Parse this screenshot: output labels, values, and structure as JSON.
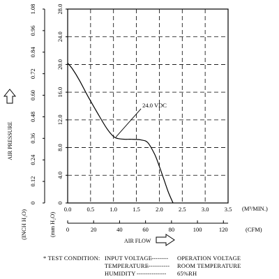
{
  "chart_data": {
    "type": "line",
    "series": [
      {
        "name": "24.0 VDC",
        "x": [
          0.0,
          0.1,
          0.25,
          0.45,
          0.65,
          0.85,
          1.0,
          1.1,
          1.25,
          1.4,
          1.6,
          1.75,
          1.9,
          2.0,
          2.1,
          2.2,
          2.3
        ],
        "y": [
          20.2,
          19.4,
          17.8,
          15.3,
          13.0,
          10.8,
          9.6,
          9.3,
          9.2,
          9.2,
          9.1,
          8.7,
          7.0,
          5.3,
          3.4,
          1.5,
          0.0
        ]
      }
    ],
    "annotation": "24.0 VDC",
    "xlim": [
      0,
      3.5
    ],
    "xticks": [
      "0.0",
      "0.5",
      "1.0",
      "1.5",
      "2.0",
      "2.5",
      "3.0",
      "3.5"
    ],
    "xunit": "(M³/MIN.)",
    "ylim": [
      0,
      28
    ],
    "yticks_mm": [
      "0",
      "4.0",
      "8.0",
      "12.0",
      "16.0",
      "20.0",
      "24.0",
      "28.0"
    ],
    "yticks_inch": [
      "0",
      "0.12",
      "0.24",
      "0.36",
      "0.48",
      "0.60",
      "0.72",
      "0.84",
      "0.96",
      "1.08"
    ],
    "y_unit_inch": "(INCH H₂O)",
    "y_unit_mm": "(mm H₂O)",
    "ylabel": "AIR PRESSURE",
    "cfm_ticks": [
      "0",
      "20",
      "40",
      "60",
      "80",
      "100",
      "120"
    ],
    "cfm_unit": "(CFM)",
    "xlabel": "AIR FLOW",
    "grid": true
  },
  "test_condition": {
    "bullet": "* TEST CONDITION:",
    "rows": [
      {
        "key": "INPUT VOLTAGE",
        "dash": "--------",
        "value": "OPERATION VOLTAGE"
      },
      {
        "key": "TEMPERATURE",
        "dash": "-----------",
        "value": "ROOM TEMPERATURE"
      },
      {
        "key": "HUMIDITY",
        "dash": "--------------",
        "value": "65%RH"
      }
    ]
  }
}
